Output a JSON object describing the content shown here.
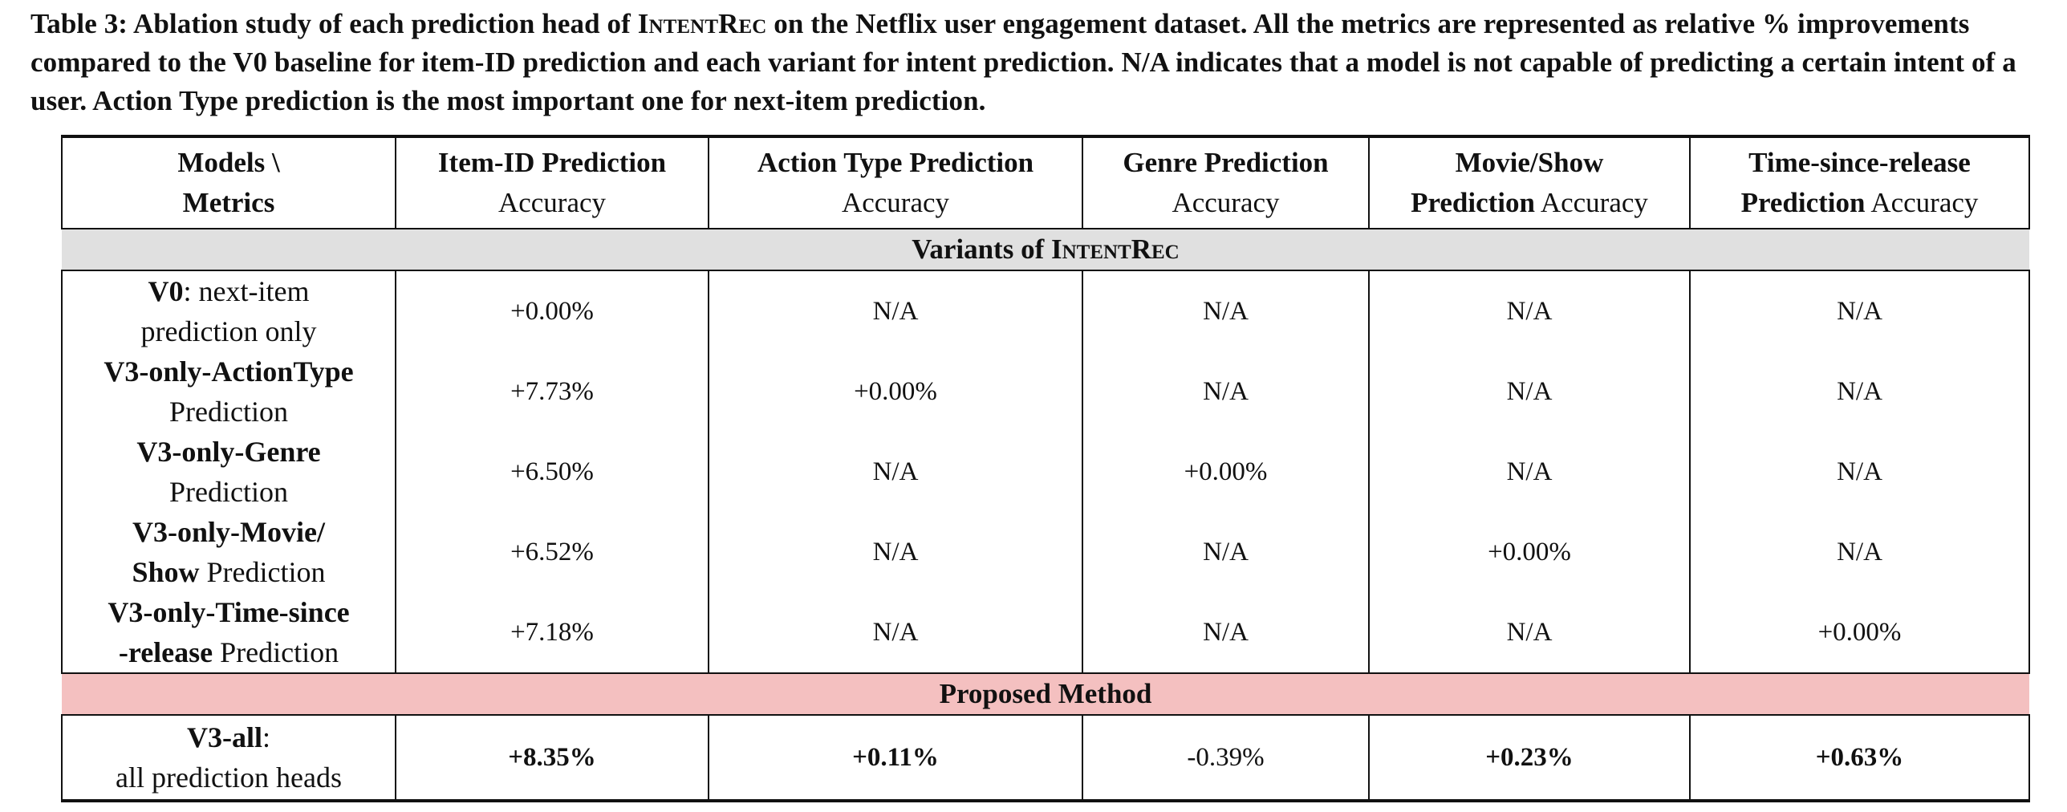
{
  "caption": {
    "prefix": "Table 3: Ablation study of each prediction head of ",
    "model": "IntentRec",
    "suffix": " on the Netflix user engagement dataset. All the metrics are represented as relative % improvements compared to the V0 baseline for item-ID prediction and each variant for intent prediction. N/A indicates that a model is not capable of predicting a certain intent of a user. Action Type prediction is the most important one for next-item prediction."
  },
  "table": {
    "headers": [
      {
        "line1": "Models \\",
        "line2": "Metrics",
        "line2_bold": true
      },
      {
        "line1": "Item-ID Prediction",
        "line2": "Accuracy"
      },
      {
        "line1": "Action Type Prediction",
        "line2": "Accuracy"
      },
      {
        "line1": "Genre Prediction",
        "line2": "Accuracy"
      },
      {
        "line1": "Movie/Show",
        "line2_bold_part": "Prediction",
        "line2_rest": " Accuracy"
      },
      {
        "line1": "Time-since-release",
        "line2_bold_part": "Prediction",
        "line2_rest": " Accuracy"
      }
    ],
    "section_variants": {
      "prefix": "Variants of ",
      "model": "IntentRec"
    },
    "section_proposed": "Proposed Method",
    "rows": [
      {
        "name_bold": "V0",
        "name_line1_rest": ": next-item",
        "name_line2": "prediction only",
        "values": [
          "+0.00%",
          "N/A",
          "N/A",
          "N/A",
          "N/A"
        ]
      },
      {
        "name_bold": "V3-only-ActionType",
        "name_line1_rest": "",
        "name_line2": "Prediction",
        "values": [
          "+7.73%",
          "+0.00%",
          "N/A",
          "N/A",
          "N/A"
        ]
      },
      {
        "name_bold": "V3-only-Genre",
        "name_line1_rest": "",
        "name_line2": "Prediction",
        "values": [
          "+6.50%",
          "N/A",
          "+0.00%",
          "N/A",
          "N/A"
        ]
      },
      {
        "name_bold": "V3-only-Movie/",
        "name_line1_rest": "",
        "name_line2_bold": "Show",
        "name_line2": " Prediction",
        "values": [
          "+6.52%",
          "N/A",
          "N/A",
          "+0.00%",
          "N/A"
        ]
      },
      {
        "name_bold": "V3-only-Time-since",
        "name_line1_rest": "",
        "name_line2_bold": "-release",
        "name_line2": " Prediction",
        "values": [
          "+7.18%",
          "N/A",
          "N/A",
          "N/A",
          "+0.00%"
        ]
      }
    ],
    "proposed_row": {
      "name_bold": "V3-all",
      "name_line1_rest": ":",
      "name_line2": "all prediction heads",
      "values": [
        "+8.35%",
        "+0.11%",
        "-0.39%",
        "+0.23%",
        "+0.63%"
      ],
      "bold": [
        true,
        true,
        false,
        true,
        true
      ]
    }
  }
}
